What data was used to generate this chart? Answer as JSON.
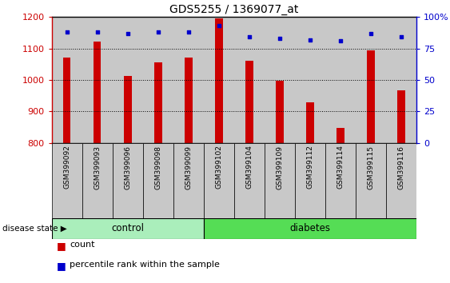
{
  "title": "GDS5255 / 1369077_at",
  "samples": [
    "GSM399092",
    "GSM399093",
    "GSM399096",
    "GSM399098",
    "GSM399099",
    "GSM399102",
    "GSM399104",
    "GSM399109",
    "GSM399112",
    "GSM399114",
    "GSM399115",
    "GSM399116"
  ],
  "counts": [
    1070,
    1122,
    1012,
    1055,
    1070,
    1195,
    1062,
    997,
    930,
    848,
    1093,
    968
  ],
  "percentiles": [
    88,
    88,
    87,
    88,
    88,
    93,
    84,
    83,
    82,
    81,
    87,
    84
  ],
  "ylim_left": [
    800,
    1200
  ],
  "ylim_right": [
    0,
    100
  ],
  "left_yticks": [
    800,
    900,
    1000,
    1100,
    1200
  ],
  "right_yticks": [
    0,
    25,
    50,
    75,
    100
  ],
  "right_yticklabels": [
    "0",
    "25",
    "50",
    "75",
    "100%"
  ],
  "bar_color": "#CC0000",
  "dot_color": "#0000CC",
  "n_control": 5,
  "n_diabetes": 7,
  "control_label": "control",
  "diabetes_label": "diabetes",
  "disease_state_label": "disease state",
  "arrow": "▶",
  "legend_count_label": "count",
  "legend_pct_label": "percentile rank within the sample",
  "col_bg_color": "#C8C8C8",
  "control_color": "#AAEEBB",
  "diabetes_color": "#55DD55",
  "white": "#FFFFFF",
  "title_fontsize": 10,
  "tick_fontsize": 8,
  "label_fontsize": 6.5,
  "disease_fontsize": 8.5,
  "legend_fontsize": 8
}
